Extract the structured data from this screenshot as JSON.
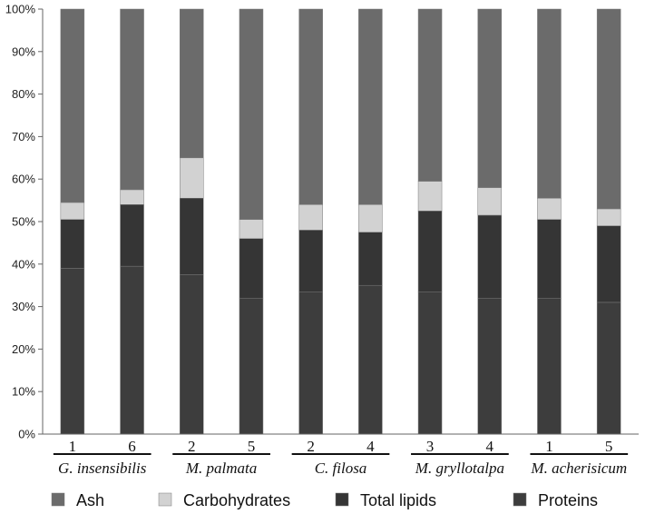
{
  "chart_data": {
    "type": "bar",
    "stacked": true,
    "percent": true,
    "grid": false,
    "legend_position": "bottom",
    "categories": [
      "1",
      "6",
      "2",
      "5",
      "2",
      "4",
      "3",
      "4",
      "1",
      "5"
    ],
    "groups": [
      {
        "label": "G. insensibilis",
        "span": [
          0,
          1
        ]
      },
      {
        "label": "M. palmata",
        "span": [
          2,
          3
        ]
      },
      {
        "label": "C. filosa",
        "span": [
          4,
          5
        ]
      },
      {
        "label": "M. gryllotalpa",
        "span": [
          6,
          7
        ]
      },
      {
        "label": "M. acherisicum",
        "span": [
          8,
          9
        ]
      }
    ],
    "series": [
      {
        "name": "Proteins",
        "color": "#3d3d3d",
        "values": [
          39,
          39.5,
          37.5,
          32,
          33.5,
          35,
          33.5,
          32,
          32,
          31
        ]
      },
      {
        "name": "Total lipids",
        "color": "#353535",
        "values": [
          11.5,
          14.5,
          18,
          14,
          14.5,
          12.5,
          19,
          19.5,
          18.5,
          18
        ]
      },
      {
        "name": "Carbohydrates",
        "color": "#d2d2d2",
        "values": [
          4,
          3.5,
          9.5,
          4.5,
          6,
          6.5,
          7,
          6.5,
          5,
          4
        ]
      },
      {
        "name": "Ash",
        "color": "#6b6b6b",
        "values": [
          45.5,
          42.5,
          35,
          49.5,
          46,
          46,
          40.5,
          42,
          44.5,
          47
        ]
      }
    ],
    "legend_order": [
      "Ash",
      "Carbohydrates",
      "Total lipids",
      "Proteins"
    ],
    "yticks": [
      "0%",
      "10%",
      "20%",
      "30%",
      "40%",
      "50%",
      "60%",
      "70%",
      "80%",
      "90%",
      "100%"
    ],
    "ylim": [
      0,
      100
    ],
    "title": "",
    "xlabel": "",
    "ylabel": ""
  }
}
